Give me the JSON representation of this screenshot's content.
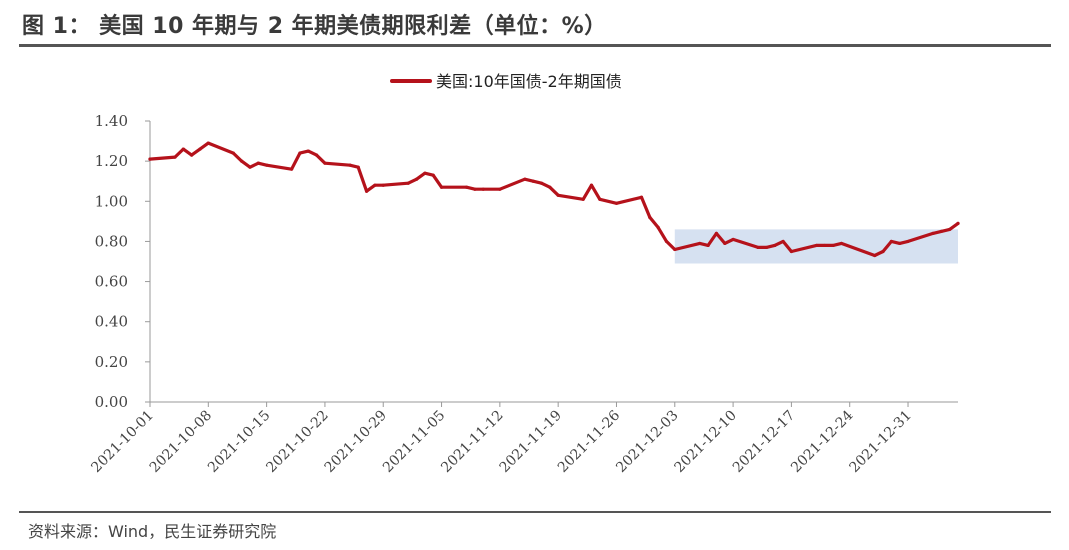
{
  "title": "图 1：   美国 10 年期与 2 年期美债期限利差（单位：%）",
  "source": "资料来源：Wind，民生证券研究院",
  "chart_data": {
    "type": "line",
    "title": "",
    "xlabel": "",
    "ylabel": "",
    "ylim": [
      0,
      1.4
    ],
    "y_ticks": [
      "0.00",
      "0.20",
      "0.40",
      "0.60",
      "0.80",
      "1.00",
      "1.20",
      "1.40"
    ],
    "x_ticks": [
      "2021-10-01",
      "2021-10-08",
      "2021-10-15",
      "2021-10-22",
      "2021-10-29",
      "2021-11-05",
      "2021-11-12",
      "2021-11-19",
      "2021-11-26",
      "2021-12-03",
      "2021-12-10",
      "2021-12-17",
      "2021-12-24",
      "2021-12-31"
    ],
    "x_range": [
      "2021-10-01",
      "2022-01-06"
    ],
    "grid": false,
    "legend_position": "top-center",
    "series_color": "#b5121b",
    "highlight_color": "#d6e1f1",
    "highlight_region": {
      "x": [
        "2021-12-03",
        "2022-01-06"
      ],
      "y": [
        0.69,
        0.86
      ]
    },
    "series": [
      {
        "name": "美国:10年国债-2年期国债",
        "x": [
          "2021-10-01",
          "2021-10-04",
          "2021-10-05",
          "2021-10-06",
          "2021-10-07",
          "2021-10-08",
          "2021-10-11",
          "2021-10-12",
          "2021-10-13",
          "2021-10-14",
          "2021-10-15",
          "2021-10-18",
          "2021-10-19",
          "2021-10-20",
          "2021-10-21",
          "2021-10-22",
          "2021-10-25",
          "2021-10-26",
          "2021-10-27",
          "2021-10-28",
          "2021-10-29",
          "2021-11-01",
          "2021-11-02",
          "2021-11-03",
          "2021-11-04",
          "2021-11-05",
          "2021-11-08",
          "2021-11-09",
          "2021-11-10",
          "2021-11-12",
          "2021-11-15",
          "2021-11-16",
          "2021-11-17",
          "2021-11-18",
          "2021-11-19",
          "2021-11-22",
          "2021-11-23",
          "2021-11-24",
          "2021-11-26",
          "2021-11-29",
          "2021-11-30",
          "2021-12-01",
          "2021-12-02",
          "2021-12-03",
          "2021-12-06",
          "2021-12-07",
          "2021-12-08",
          "2021-12-09",
          "2021-12-10",
          "2021-12-13",
          "2021-12-14",
          "2021-12-15",
          "2021-12-16",
          "2021-12-17",
          "2021-12-20",
          "2021-12-21",
          "2021-12-22",
          "2021-12-23",
          "2021-12-27",
          "2021-12-28",
          "2021-12-29",
          "2021-12-30",
          "2021-12-31",
          "2022-01-03",
          "2022-01-04",
          "2022-01-05",
          "2022-01-06"
        ],
        "values": [
          1.21,
          1.22,
          1.26,
          1.23,
          1.26,
          1.29,
          1.24,
          1.2,
          1.17,
          1.19,
          1.18,
          1.16,
          1.24,
          1.25,
          1.23,
          1.19,
          1.18,
          1.17,
          1.05,
          1.08,
          1.08,
          1.09,
          1.11,
          1.14,
          1.13,
          1.07,
          1.07,
          1.06,
          1.06,
          1.06,
          1.11,
          1.1,
          1.09,
          1.07,
          1.03,
          1.01,
          1.08,
          1.01,
          0.99,
          1.02,
          0.92,
          0.87,
          0.8,
          0.76,
          0.79,
          0.78,
          0.84,
          0.79,
          0.81,
          0.77,
          0.77,
          0.78,
          0.8,
          0.75,
          0.78,
          0.78,
          0.78,
          0.79,
          0.73,
          0.75,
          0.8,
          0.79,
          0.8,
          0.84,
          0.85,
          0.86,
          0.89
        ]
      }
    ]
  }
}
